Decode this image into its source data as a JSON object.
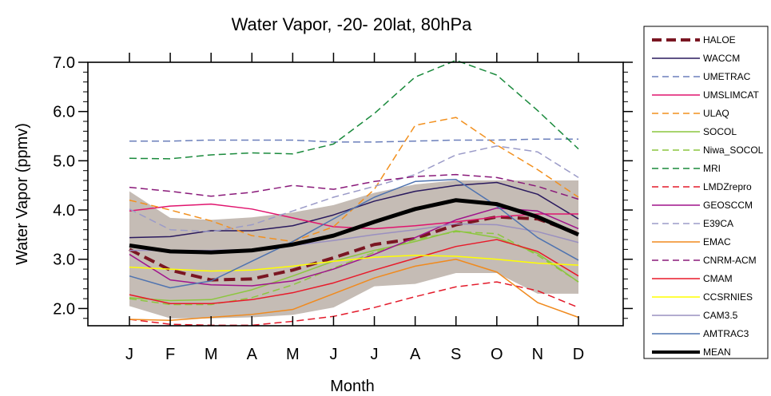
{
  "chart_data": {
    "type": "line",
    "title": "Water Vapor,  -20- 20lat, 80hPa",
    "xlabel": "Month",
    "ylabel": "Water Vapor (ppmv)",
    "ylim": [
      1.65,
      7.0
    ],
    "yticks": [
      2.0,
      3.0,
      4.0,
      5.0,
      6.0,
      7.0
    ],
    "ytick_labels": [
      "2.0",
      "3.0",
      "4.0",
      "5.0",
      "6.0",
      "7.0"
    ],
    "categories": [
      "J",
      "F",
      "M",
      "A",
      "M",
      "J",
      "J",
      "A",
      "S",
      "O",
      "N",
      "D"
    ],
    "grid": false,
    "legend_position": "right",
    "band": {
      "color": "#c5bcb5",
      "lower": [
        2.05,
        1.8,
        1.8,
        1.82,
        1.87,
        2.02,
        2.45,
        2.5,
        2.72,
        2.72,
        2.3,
        2.3
      ],
      "upper": [
        4.38,
        3.84,
        3.8,
        3.85,
        3.95,
        4.1,
        4.35,
        4.52,
        4.6,
        4.6,
        4.6,
        4.6
      ]
    },
    "series": [
      {
        "name": "HALOE",
        "color": "#7a1622",
        "dash": "dashed",
        "width": 4,
        "values": [
          3.2,
          2.78,
          2.58,
          2.6,
          2.78,
          3.03,
          3.3,
          3.42,
          3.7,
          3.86,
          3.82,
          3.52
        ]
      },
      {
        "name": "WACCM",
        "color": "#2a1a5e",
        "dash": "solid",
        "width": 1.5,
        "values": [
          3.44,
          3.46,
          3.58,
          3.58,
          3.68,
          3.9,
          4.18,
          4.38,
          4.5,
          4.56,
          4.32,
          3.82
        ]
      },
      {
        "name": "UMETRAC",
        "color": "#6b7fbb",
        "dash": "dashed",
        "width": 1.5,
        "values": [
          5.4,
          5.4,
          5.42,
          5.42,
          5.42,
          5.38,
          5.38,
          5.4,
          5.42,
          5.42,
          5.44,
          5.44
        ]
      },
      {
        "name": "UMSLIMCAT",
        "color": "#e0146e",
        "dash": "solid",
        "width": 1.5,
        "values": [
          3.98,
          4.08,
          4.12,
          4.02,
          3.84,
          3.66,
          3.62,
          3.68,
          3.76,
          3.86,
          3.92,
          3.92
        ]
      },
      {
        "name": "ULAQ",
        "color": "#f2901e",
        "dash": "dashed",
        "width": 1.5,
        "values": [
          4.2,
          4.0,
          3.78,
          3.48,
          3.36,
          3.66,
          4.42,
          5.72,
          5.88,
          5.32,
          4.82,
          4.26
        ]
      },
      {
        "name": "SOCOL",
        "color": "#8cc63f",
        "dash": "solid",
        "width": 1.5,
        "values": [
          2.22,
          2.16,
          2.18,
          2.38,
          2.66,
          2.96,
          3.18,
          3.36,
          3.58,
          3.44,
          3.12,
          2.54
        ]
      },
      {
        "name": "Niwa_SOCOL",
        "color": "#8cc63f",
        "dash": "dashed",
        "width": 1.5,
        "values": [
          2.2,
          2.08,
          2.08,
          2.22,
          2.48,
          2.82,
          3.14,
          3.4,
          3.56,
          3.52,
          3.08,
          2.54
        ]
      },
      {
        "name": "MRI",
        "color": "#1a8a3c",
        "dash": "dashed",
        "width": 1.5,
        "values": [
          5.05,
          5.04,
          5.12,
          5.16,
          5.14,
          5.34,
          5.96,
          6.7,
          7.04,
          6.74,
          6.02,
          5.24
        ]
      },
      {
        "name": "LMDZrepro",
        "color": "#e31a2a",
        "dash": "dashed",
        "width": 1.5,
        "values": [
          1.78,
          1.68,
          1.66,
          1.66,
          1.74,
          1.84,
          2.02,
          2.24,
          2.44,
          2.54,
          2.36,
          2.02
        ]
      },
      {
        "name": "GEOSCCM",
        "color": "#a0148c",
        "dash": "solid",
        "width": 1.5,
        "values": [
          3.1,
          2.58,
          2.48,
          2.46,
          2.56,
          2.8,
          3.1,
          3.44,
          3.8,
          4.04,
          3.98,
          3.62
        ]
      },
      {
        "name": "E39CA",
        "color": "#9b9bc8",
        "dash": "dashed",
        "width": 1.5,
        "values": [
          4.02,
          3.6,
          3.56,
          3.7,
          3.98,
          4.26,
          4.48,
          4.72,
          5.12,
          5.3,
          5.18,
          4.66
        ]
      },
      {
        "name": "EMAC",
        "color": "#f08a1e",
        "dash": "solid",
        "width": 1.5,
        "values": [
          1.78,
          1.76,
          1.82,
          1.88,
          1.98,
          2.3,
          2.62,
          2.86,
          3.0,
          2.74,
          2.12,
          1.82
        ]
      },
      {
        "name": "CNRM-ACM",
        "color": "#8a1a7a",
        "dash": "dashed",
        "width": 1.5,
        "values": [
          4.46,
          4.38,
          4.28,
          4.36,
          4.5,
          4.42,
          4.58,
          4.68,
          4.72,
          4.66,
          4.48,
          4.22
        ]
      },
      {
        "name": "CMAM",
        "color": "#e81a2a",
        "dash": "solid",
        "width": 1.5,
        "values": [
          2.28,
          2.1,
          2.1,
          2.18,
          2.32,
          2.52,
          2.78,
          3.02,
          3.26,
          3.4,
          3.16,
          2.66
        ]
      },
      {
        "name": "CCSRNIES",
        "color": "#ffff00",
        "dash": "solid",
        "width": 1.5,
        "values": [
          2.84,
          2.8,
          2.76,
          2.78,
          2.86,
          2.96,
          3.04,
          3.08,
          3.06,
          3.0,
          2.92,
          2.88
        ]
      },
      {
        "name": "CAM3.5",
        "color": "#9a90c0",
        "dash": "solid",
        "width": 1.5,
        "values": [
          3.18,
          3.18,
          3.18,
          3.2,
          3.28,
          3.38,
          3.5,
          3.6,
          3.72,
          3.7,
          3.56,
          3.34
        ]
      },
      {
        "name": "AMTRAC3",
        "color": "#4f73b0",
        "dash": "solid",
        "width": 1.5,
        "values": [
          2.66,
          2.42,
          2.56,
          2.96,
          3.36,
          3.82,
          4.26,
          4.58,
          4.62,
          4.08,
          3.44,
          2.98
        ]
      },
      {
        "name": "MEAN",
        "color": "#000000",
        "dash": "solid",
        "width": 5,
        "values": [
          3.28,
          3.16,
          3.14,
          3.18,
          3.3,
          3.48,
          3.76,
          4.02,
          4.2,
          4.12,
          3.86,
          3.5
        ]
      }
    ]
  }
}
